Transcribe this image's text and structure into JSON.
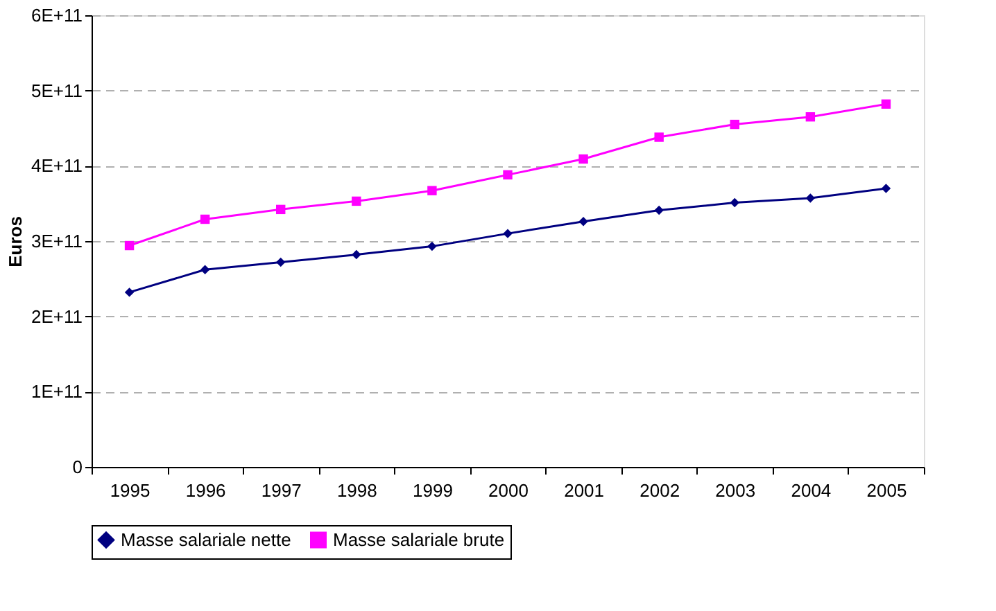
{
  "chart_data": {
    "type": "line",
    "ylabel": "Euros",
    "categories": [
      "1995",
      "1996",
      "1997",
      "1998",
      "1999",
      "2000",
      "2001",
      "2002",
      "2003",
      "2004",
      "2005"
    ],
    "series": [
      {
        "name": "Masse salariale nette",
        "color": "#000080",
        "marker": "diamond",
        "values": [
          232000000000.0,
          262000000000.0,
          272000000000.0,
          282000000000.0,
          293000000000.0,
          310000000000.0,
          326000000000.0,
          341000000000.0,
          351000000000.0,
          357000000000.0,
          370000000000.0
        ]
      },
      {
        "name": "Masse salariale brute",
        "color": "#ff00ff",
        "marker": "square",
        "values": [
          294000000000.0,
          329000000000.0,
          342000000000.0,
          353000000000.0,
          367000000000.0,
          388000000000.0,
          409000000000.0,
          438000000000.0,
          455000000000.0,
          465000000000.0,
          482000000000.0
        ]
      }
    ],
    "ylim": [
      0,
      600000000000.0
    ],
    "yticks": [
      0,
      {
        "value": 100000000000.0,
        "label": "1E+11"
      },
      {
        "value": 200000000000.0,
        "label": "2E+11"
      },
      {
        "value": 300000000000.0,
        "label": "3E+11"
      },
      {
        "value": 400000000000.0,
        "label": "4E+11"
      },
      {
        "value": 500000000000.0,
        "label": "5E+11"
      },
      {
        "value": 600000000000.0,
        "label": "6E+11"
      }
    ],
    "grid": "y",
    "legend": "bottom",
    "line_style": "solid"
  }
}
